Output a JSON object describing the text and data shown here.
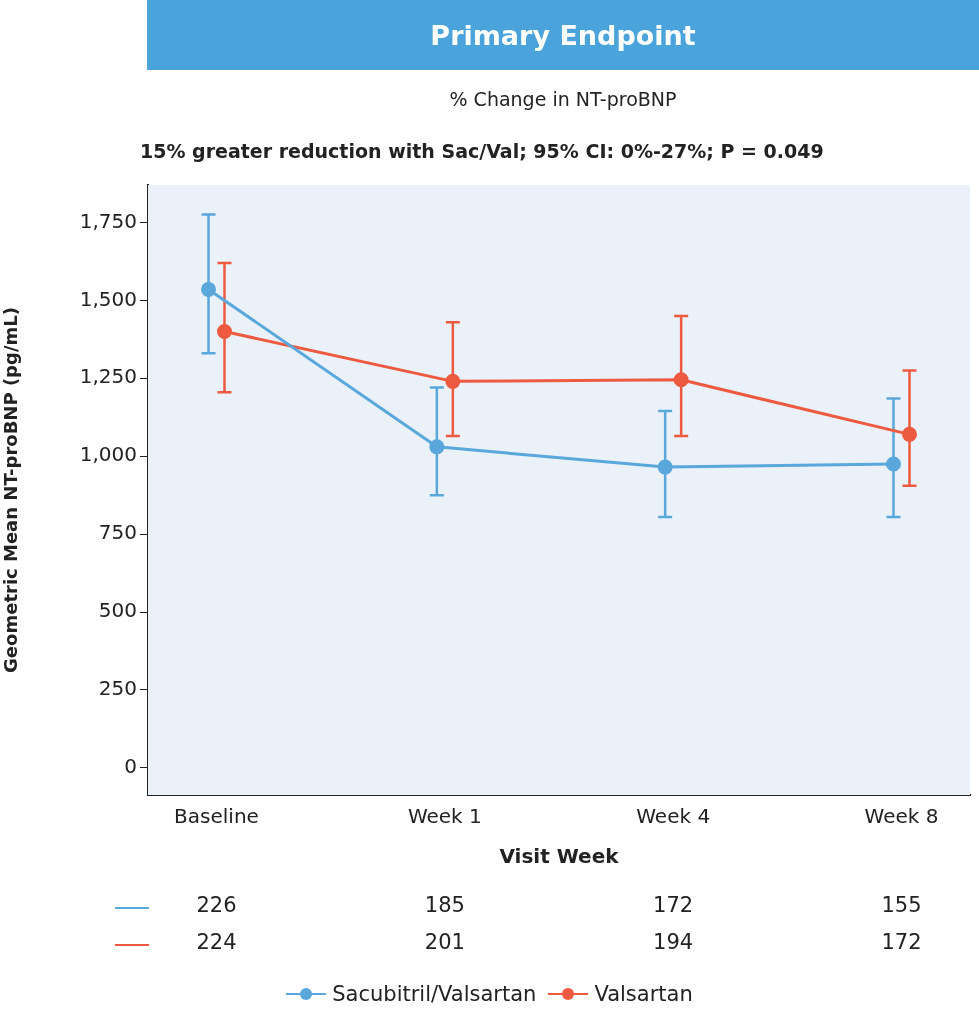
{
  "chart_data": {
    "type": "line",
    "title": "Primary Endpoint",
    "subtitle": "% Change in NT-proBNP",
    "xlabel": "Visit Week",
    "ylabel": "Geometric Mean NT-proBNP (pg/mL)",
    "annotations": [
      "15% greater reduction with Sac/Val; 95% CI: 0%-27%; P = 0.049",
      "226",
      "185",
      "172",
      "155",
      "224",
      "201",
      "194",
      "172"
    ],
    "series": [
      {
        "name": "Sacubitril/Valsartan",
        "color": "#5aa7dc",
        "values": [
          1535,
          1030,
          965,
          975
        ],
        "errors": [
          [
            1330,
            1775
          ],
          [
            875,
            1220
          ],
          [
            805,
            1145
          ],
          [
            805,
            1185
          ]
        ]
      },
      {
        "name": "Valsartan",
        "color": "#ee5a40",
        "values": [
          1400,
          1240,
          1245,
          1070
        ],
        "errors": [
          [
            1205,
            1620
          ],
          [
            1065,
            1430
          ],
          [
            1065,
            1450
          ],
          [
            905,
            1275
          ]
        ]
      }
    ],
    "categories": [
      "Baseline",
      "Week 1",
      "Week 4",
      "Week 8"
    ],
    "ylim": [
      -87,
      1870
    ],
    "yticks": [
      0,
      250,
      500,
      750,
      {
        "value": 1000,
        "label": "1,000"
      },
      {
        "value": 1250,
        "label": "1,250"
      },
      {
        "value": 1500,
        "label": "1,500"
      },
      {
        "value": 1750,
        "label": "1,750"
      }
    ],
    "grid": false,
    "legend": "bottom",
    "marker": "circle",
    "line_style": "solid"
  }
}
